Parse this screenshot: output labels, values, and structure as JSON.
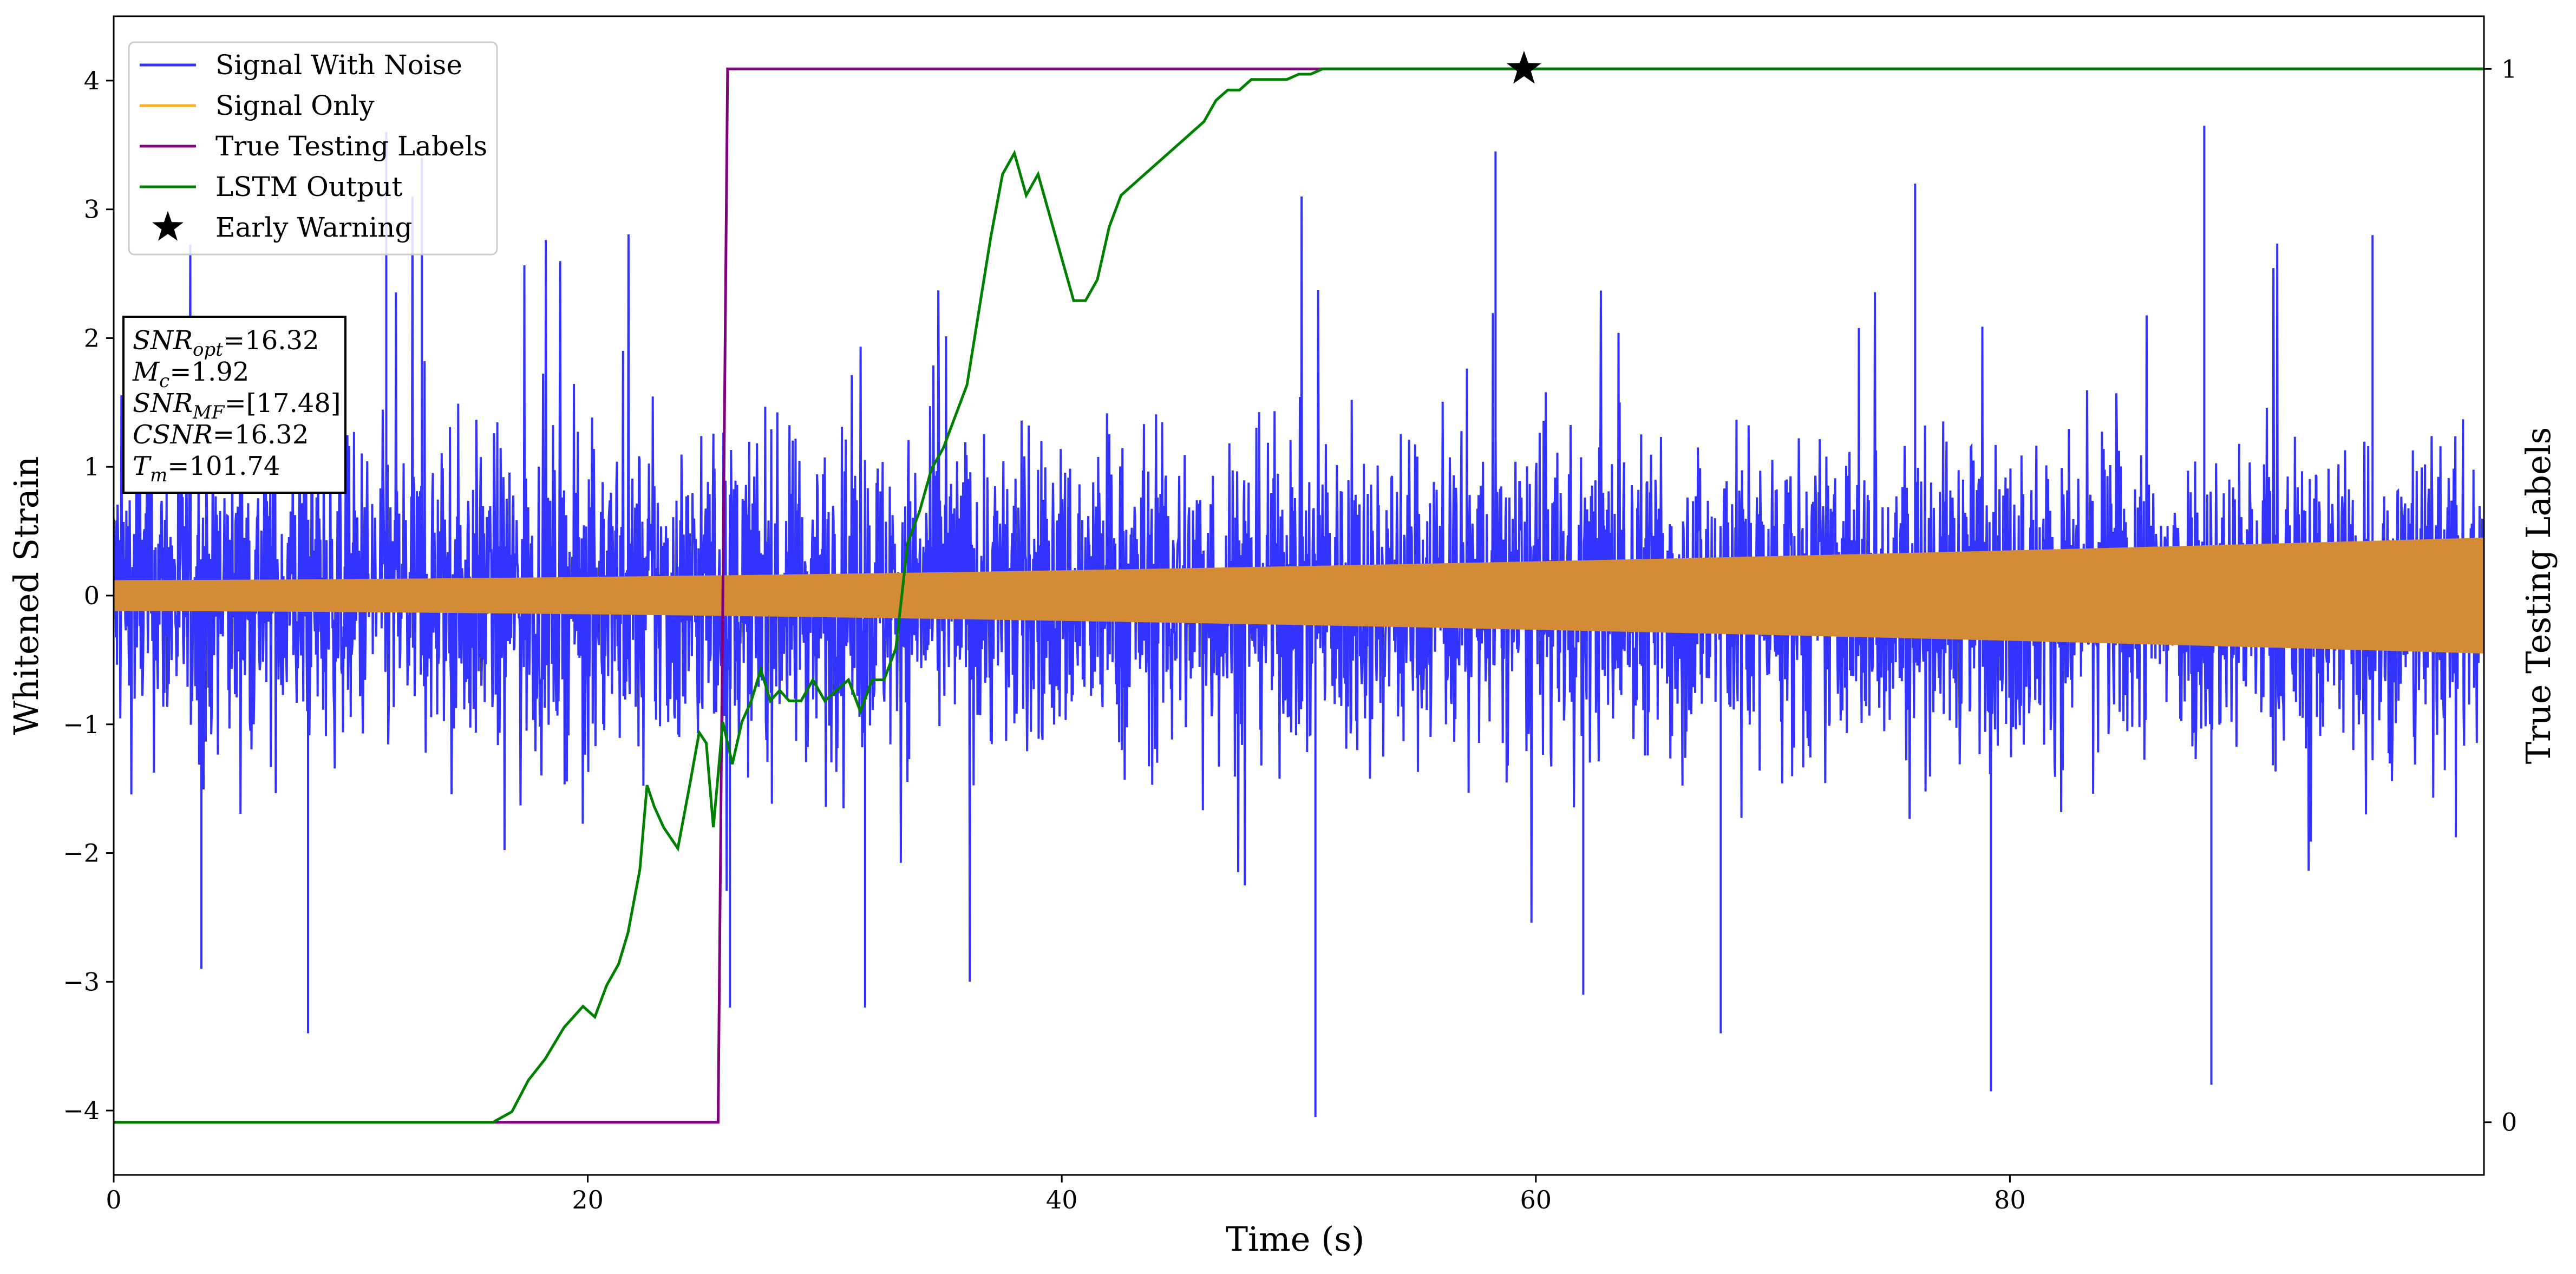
{
  "chart_data": {
    "type": "line",
    "xlabel": "Time (s)",
    "ylabel": "Whitened Strain",
    "ylabel_right": "True Testing Labels",
    "xlim": [
      0,
      100
    ],
    "ylim": [
      -4.5,
      4.5
    ],
    "ylim_right": [
      -0.05,
      1.05
    ],
    "x_ticks": [
      0,
      20,
      40,
      60,
      80
    ],
    "y_ticks": [
      -4,
      -3,
      -2,
      -1,
      0,
      1,
      2,
      3,
      4
    ],
    "y_ticks_right": [
      0,
      1
    ],
    "x_tick_labels": [
      "0",
      "20",
      "40",
      "60",
      "80"
    ],
    "y_tick_labels": [
      "−4",
      "−3",
      "−2",
      "−1",
      "0",
      "1",
      "2",
      "3",
      "4"
    ],
    "y_tick_labels_right": [
      "0",
      "1"
    ],
    "legend": {
      "placement": "top-left",
      "entries": [
        {
          "label": "Signal With Noise",
          "color": "#3333ff",
          "marker": "line"
        },
        {
          "label": "Signal Only",
          "color": "#ffb020",
          "marker": "line"
        },
        {
          "label": "True Testing Labels",
          "color": "#800080",
          "marker": "line"
        },
        {
          "label": "LSTM Output",
          "color": "#008000",
          "marker": "line"
        },
        {
          "label": "Early Warning",
          "color": "#000000",
          "marker": "star"
        }
      ]
    },
    "annotation": {
      "lines": [
        {
          "base": "SNR",
          "sub": "opt",
          "value": "=16.32"
        },
        {
          "base": "M",
          "sub": "c",
          "value": "=1.92"
        },
        {
          "base": "SNR",
          "sub": "MF",
          "value": "=[17.48]"
        },
        {
          "base": "CSNR",
          "sub": "",
          "value": "=16.32"
        },
        {
          "base": "T",
          "sub": "m",
          "value": "=101.74"
        }
      ]
    },
    "series": [
      {
        "name": "Signal With Noise",
        "color": "#3333ff",
        "axis": "left",
        "kind": "noise",
        "approx_std": 0.7,
        "extremes": [
          {
            "x": 3.7,
            "y": -2.9
          },
          {
            "x": 8.2,
            "y": -3.4
          },
          {
            "x": 11.5,
            "y": 3.6
          },
          {
            "x": 13.0,
            "y": 3.4
          },
          {
            "x": 26.0,
            "y": -3.2
          },
          {
            "x": 31.7,
            "y": -3.2
          },
          {
            "x": 50.7,
            "y": -4.05
          },
          {
            "x": 58.3,
            "y": 3.45
          },
          {
            "x": 62.0,
            "y": -3.1
          },
          {
            "x": 67.8,
            "y": -3.4
          },
          {
            "x": 76.0,
            "y": 3.2
          },
          {
            "x": 79.2,
            "y": -3.85
          },
          {
            "x": 88.2,
            "y": 3.65
          },
          {
            "x": 88.5,
            "y": -3.8
          },
          {
            "x": 95.3,
            "y": 2.8
          }
        ]
      },
      {
        "name": "Signal Only",
        "color": "#ffb020",
        "axis": "left",
        "kind": "chirp",
        "amplitude_start": 0.12,
        "amplitude_end": 0.45
      },
      {
        "name": "True Testing Labels",
        "color": "#800080",
        "axis": "right",
        "x": [
          0,
          25.5,
          25.9,
          100
        ],
        "y": [
          0,
          0,
          1,
          1
        ]
      },
      {
        "name": "LSTM Output",
        "color": "#008000",
        "axis": "right",
        "x": [
          0,
          16,
          16.8,
          17.5,
          18.2,
          19.0,
          19.8,
          20.3,
          20.8,
          21.3,
          21.7,
          22.2,
          22.5,
          22.8,
          23.2,
          23.8,
          24.3,
          24.7,
          25.0,
          25.3,
          25.7,
          26.1,
          26.5,
          26.9,
          27.3,
          27.7,
          28.1,
          28.5,
          29.0,
          29.5,
          30.0,
          30.5,
          31.0,
          31.5,
          32.0,
          32.5,
          33.0,
          33.5,
          34.0,
          34.5,
          35.0,
          35.5,
          36.0,
          36.5,
          37.0,
          37.5,
          38.0,
          38.5,
          39.0,
          39.5,
          40.0,
          40.5,
          41.0,
          41.5,
          42.0,
          42.5,
          43.0,
          43.5,
          44.0,
          44.5,
          45.0,
          45.5,
          46.0,
          46.5,
          47.0,
          47.5,
          48.0,
          48.5,
          49.0,
          49.5,
          50.0,
          50.5,
          51.0,
          51.5,
          52.0,
          52.5,
          53.0,
          53.5,
          54.0,
          54.5,
          55.0,
          55.5,
          56.0,
          57.0,
          60.0,
          100
        ],
        "y": [
          0,
          0,
          0.01,
          0.04,
          0.06,
          0.09,
          0.11,
          0.1,
          0.13,
          0.15,
          0.18,
          0.24,
          0.32,
          0.3,
          0.28,
          0.26,
          0.32,
          0.37,
          0.36,
          0.28,
          0.38,
          0.34,
          0.38,
          0.4,
          0.43,
          0.4,
          0.41,
          0.4,
          0.4,
          0.42,
          0.4,
          0.41,
          0.42,
          0.39,
          0.42,
          0.42,
          0.45,
          0.55,
          0.58,
          0.62,
          0.64,
          0.67,
          0.7,
          0.77,
          0.84,
          0.9,
          0.92,
          0.88,
          0.9,
          0.86,
          0.82,
          0.78,
          0.78,
          0.8,
          0.85,
          0.88,
          0.89,
          0.9,
          0.91,
          0.92,
          0.93,
          0.94,
          0.95,
          0.97,
          0.98,
          0.98,
          0.99,
          0.99,
          0.99,
          0.99,
          0.995,
          0.995,
          1,
          1,
          1,
          1,
          1,
          1,
          1,
          1,
          1,
          1,
          1,
          1,
          1,
          1
        ]
      }
    ],
    "early_warning": {
      "x": 59.5,
      "y": 1.0,
      "axis": "right",
      "marker": "star",
      "color": "#000000"
    }
  }
}
